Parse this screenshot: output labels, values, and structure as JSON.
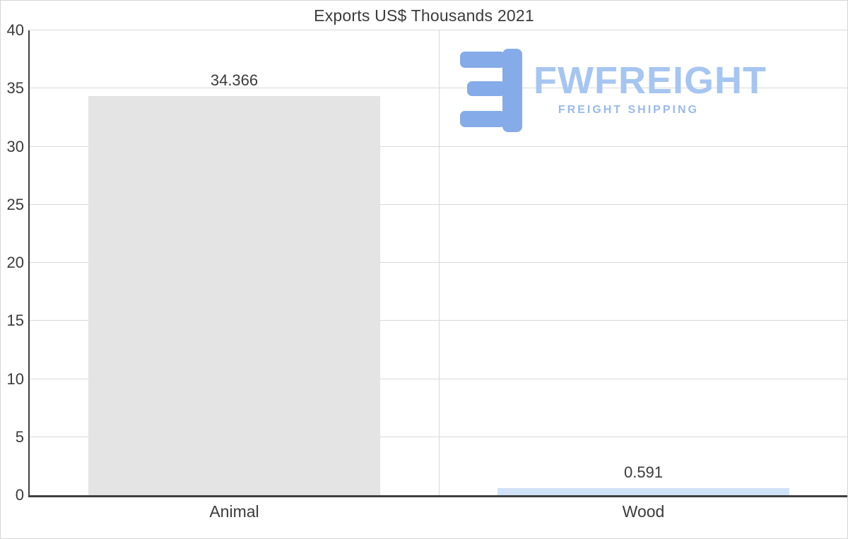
{
  "logo": {
    "name": "FWFREIGHT",
    "tagline": "FREIGHT SHIPPING",
    "icon_color": "#85abe8"
  },
  "chart_data": {
    "type": "bar",
    "title": "Exports US$ Thousands 2021",
    "categories": [
      "Animal",
      "Wood"
    ],
    "values": [
      34.366,
      0.591
    ],
    "value_labels": [
      "34.366",
      "0.591"
    ],
    "bar_colors": [
      "#e4e4e4",
      "#cfe2f7"
    ],
    "ylim": [
      0,
      40
    ],
    "yticks": [
      0,
      5,
      10,
      15,
      20,
      25,
      30,
      35,
      40
    ],
    "grid": true,
    "legend": "none",
    "xlabel": "",
    "ylabel": ""
  }
}
